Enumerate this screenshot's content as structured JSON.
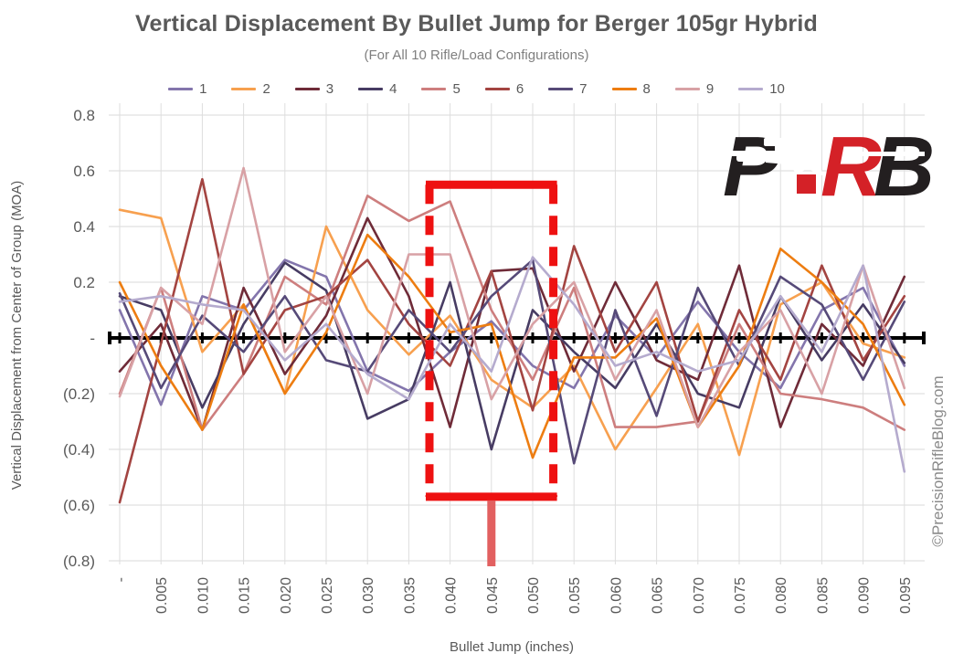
{
  "header": {
    "title": "Vertical Displacement By Bullet Jump for Berger 105gr Hybrid",
    "subtitle": "(For All 10 Rifle/Load Configurations)"
  },
  "axes": {
    "x_title": "Bullet Jump (inches)",
    "y_title": "Vertical Displacement from Center of Group (MOA)",
    "y_tick_values": [
      0.8,
      0.6,
      0.4,
      0.2,
      0,
      -0.2,
      -0.4,
      -0.6,
      -0.8
    ],
    "y_tick_labels": [
      "0.8",
      "0.6",
      "0.4",
      "0.2",
      "-",
      "(0.2)",
      "(0.4)",
      "(0.6)",
      "(0.8)"
    ],
    "x_tick_labels": [
      "-",
      "0.005",
      "0.010",
      "0.015",
      "0.020",
      "0.025",
      "0.030",
      "0.035",
      "0.040",
      "0.045",
      "0.050",
      "0.055",
      "0.060",
      "0.065",
      "0.070",
      "0.075",
      "0.080",
      "0.085",
      "0.090",
      "0.095"
    ]
  },
  "watermark": "©PrecisionRifleBlog.com",
  "logo": {
    "letters": [
      "P",
      "R",
      "B"
    ],
    "black": "#231f20",
    "red": "#d42127",
    "name": "PRB rifle logo"
  },
  "annotation": {
    "description": "red dashed highlight box over 0.040-0.050 bullet jump region",
    "box_index_from": 7.5,
    "box_index_to": 10.5,
    "box_top_moa": 0.55,
    "box_bottom_moa": -0.57,
    "stem_index": 9,
    "color": "#ee1111",
    "stem_color": "#e26060"
  },
  "chart_data": {
    "type": "line",
    "title": "Vertical Displacement By Bullet Jump for Berger 105gr Hybrid",
    "subtitle": "(For All 10 Rifle/Load Configurations)",
    "xlabel": "Bullet Jump (inches)",
    "ylabel": "Vertical Displacement from Center of Group (MOA)",
    "ylim": [
      -0.8,
      0.8
    ],
    "y_step": 0.2,
    "grid": true,
    "legend_position": "top",
    "zero_axis": "thick black line with tick marks",
    "x": [
      0,
      0.005,
      0.01,
      0.015,
      0.02,
      0.025,
      0.03,
      0.035,
      0.04,
      0.045,
      0.05,
      0.055,
      0.06,
      0.065,
      0.07,
      0.075,
      0.08,
      0.085,
      0.09,
      0.095
    ],
    "categories": [
      "-",
      "0.005",
      "0.010",
      "0.015",
      "0.020",
      "0.025",
      "0.030",
      "0.035",
      "0.040",
      "0.045",
      "0.050",
      "0.055",
      "0.060",
      "0.065",
      "0.070",
      "0.075",
      "0.080",
      "0.085",
      "0.090",
      "0.095"
    ],
    "series": [
      {
        "name": "1",
        "color": "#8375ac",
        "values": [
          0.1,
          -0.24,
          0.15,
          0.1,
          0.28,
          0.22,
          -0.12,
          -0.19,
          -0.05,
          0.06,
          -0.1,
          -0.18,
          0.08,
          -0.07,
          0.13,
          -0.05,
          -0.18,
          0.1,
          0.18,
          -0.1
        ]
      },
      {
        "name": "2",
        "color": "#f7a04f",
        "values": [
          0.46,
          0.43,
          -0.05,
          0.12,
          -0.2,
          0.4,
          0.1,
          -0.06,
          0.08,
          -0.15,
          -0.25,
          -0.1,
          -0.4,
          -0.18,
          0.05,
          -0.42,
          0.12,
          0.2,
          -0.02,
          -0.07
        ]
      },
      {
        "name": "3",
        "color": "#6f2b38",
        "values": [
          -0.12,
          0.05,
          -0.33,
          0.18,
          -0.13,
          0.08,
          0.43,
          0.15,
          -0.32,
          0.24,
          0.25,
          -0.12,
          0.2,
          -0.08,
          -0.15,
          0.26,
          -0.32,
          0.05,
          -0.1,
          0.22
        ]
      },
      {
        "name": "4",
        "color": "#473c63",
        "values": [
          0.15,
          0.1,
          -0.25,
          0.05,
          0.27,
          0.17,
          -0.29,
          -0.22,
          0.2,
          -0.4,
          0.1,
          -0.05,
          -0.18,
          0.05,
          -0.2,
          -0.25,
          0.15,
          -0.08,
          0.12,
          -0.09
        ]
      },
      {
        "name": "5",
        "color": "#cd7e7e",
        "values": [
          -0.2,
          0.18,
          -0.33,
          -0.13,
          0.22,
          0.12,
          0.51,
          0.42,
          0.49,
          0.1,
          -0.15,
          0.18,
          -0.32,
          -0.32,
          -0.3,
          0.05,
          -0.2,
          -0.22,
          -0.25,
          -0.33
        ]
      },
      {
        "name": "6",
        "color": "#a34441",
        "values": [
          -0.59,
          -0.02,
          0.57,
          -0.13,
          0.1,
          0.15,
          0.28,
          0.05,
          -0.1,
          0.24,
          -0.26,
          0.33,
          -0.05,
          0.2,
          -0.3,
          0.1,
          -0.15,
          0.26,
          -0.08,
          0.15
        ]
      },
      {
        "name": "7",
        "color": "#564a78",
        "values": [
          0.16,
          -0.18,
          0.08,
          -0.05,
          0.15,
          -0.08,
          -0.12,
          0.1,
          -0.05,
          0.15,
          0.28,
          -0.45,
          0.1,
          -0.28,
          0.18,
          -0.1,
          0.22,
          0.12,
          -0.15,
          0.13
        ]
      },
      {
        "name": "8",
        "color": "#ed7d11",
        "values": [
          0.2,
          -0.1,
          -0.33,
          0.12,
          -0.2,
          0.02,
          0.37,
          0.22,
          0.02,
          0.05,
          -0.43,
          -0.07,
          -0.07,
          0.07,
          -0.32,
          -0.1,
          0.32,
          0.2,
          0.05,
          -0.24
        ]
      },
      {
        "name": "9",
        "color": "#d8a1a5",
        "values": [
          -0.21,
          0.18,
          0.05,
          0.61,
          -0.05,
          0.15,
          -0.2,
          0.3,
          0.3,
          -0.22,
          0.05,
          0.2,
          -0.15,
          0.1,
          -0.32,
          -0.05,
          0.1,
          -0.2,
          0.26,
          -0.18
        ]
      },
      {
        "name": "10",
        "color": "#b5abce",
        "values": [
          0.13,
          0.15,
          0.12,
          0.1,
          -0.08,
          0.05,
          -0.13,
          -0.22,
          0.05,
          -0.12,
          0.29,
          0.12,
          -0.1,
          -0.05,
          -0.12,
          -0.08,
          0.15,
          -0.05,
          0.26,
          -0.48
        ]
      }
    ]
  }
}
